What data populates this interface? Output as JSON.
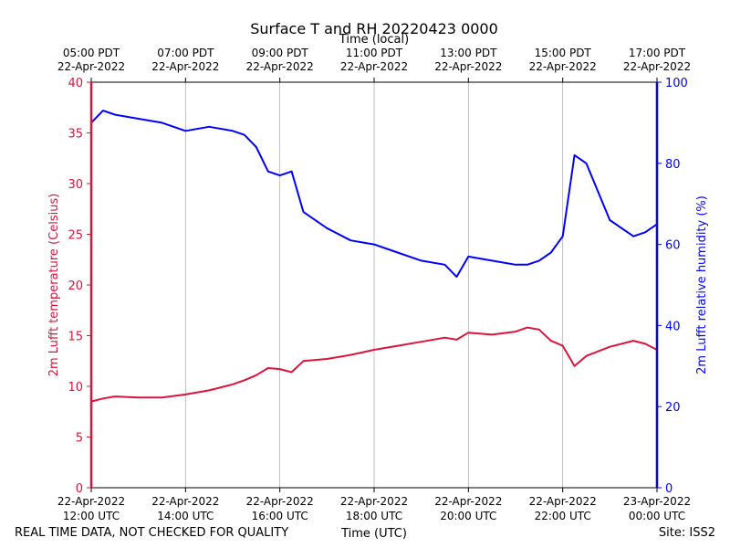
{
  "chart_data": {
    "type": "line",
    "title": "Surface T and RH 20220423 0000",
    "xlabel": "Time (UTC)",
    "x2label": "Time (local)",
    "ylabel": "2m Lufft temperature (Celsius)",
    "y2label": "2m Lufft relative humidity (%)",
    "xlim": [
      "2022-04-22 12:00",
      "2022-04-23 00:00"
    ],
    "ylim": [
      0,
      40
    ],
    "y2lim": [
      0,
      100
    ],
    "y_ticks": [
      0,
      5,
      10,
      15,
      20,
      25,
      30,
      35,
      40
    ],
    "y2_ticks": [
      0,
      20,
      40,
      60,
      80,
      100
    ],
    "grid": "vertical",
    "x_ticks_utc": [
      {
        "line1": "22-Apr-2022",
        "line2": "12:00 UTC"
      },
      {
        "line1": "22-Apr-2022",
        "line2": "14:00 UTC"
      },
      {
        "line1": "22-Apr-2022",
        "line2": "16:00 UTC"
      },
      {
        "line1": "22-Apr-2022",
        "line2": "18:00 UTC"
      },
      {
        "line1": "22-Apr-2022",
        "line2": "20:00 UTC"
      },
      {
        "line1": "22-Apr-2022",
        "line2": "22:00 UTC"
      },
      {
        "line1": "23-Apr-2022",
        "line2": "00:00 UTC"
      }
    ],
    "x_ticks_local": [
      {
        "line1": "05:00 PDT",
        "line2": "22-Apr-2022"
      },
      {
        "line1": "07:00 PDT",
        "line2": "22-Apr-2022"
      },
      {
        "line1": "09:00 PDT",
        "line2": "22-Apr-2022"
      },
      {
        "line1": "11:00 PDT",
        "line2": "22-Apr-2022"
      },
      {
        "line1": "13:00 PDT",
        "line2": "22-Apr-2022"
      },
      {
        "line1": "15:00 PDT",
        "line2": "22-Apr-2022"
      },
      {
        "line1": "17:00 PDT",
        "line2": "22-Apr-2022"
      }
    ],
    "x_hours_utc": [
      12.0,
      12.25,
      12.5,
      13.0,
      13.5,
      14.0,
      14.5,
      15.0,
      15.25,
      15.5,
      15.75,
      16.0,
      16.25,
      16.5,
      17.0,
      17.5,
      18.0,
      18.5,
      19.0,
      19.5,
      19.75,
      20.0,
      20.5,
      21.0,
      21.25,
      21.5,
      21.75,
      22.0,
      22.25,
      22.5,
      23.0,
      23.5,
      23.75,
      24.0
    ],
    "series": [
      {
        "name": "2m Lufft temperature",
        "color": "#dc143c",
        "axis": "left",
        "values": [
          8.5,
          8.8,
          9.0,
          8.9,
          8.9,
          9.2,
          9.6,
          10.2,
          10.6,
          11.1,
          11.8,
          11.7,
          11.4,
          12.5,
          12.7,
          13.1,
          13.6,
          14.0,
          14.4,
          14.8,
          14.6,
          15.3,
          15.1,
          15.4,
          15.8,
          15.6,
          14.5,
          14.0,
          12.0,
          13.0,
          13.9,
          14.5,
          14.2,
          13.6
        ]
      },
      {
        "name": "2m Lufft relative humidity",
        "color": "#0000ff",
        "axis": "right",
        "values": [
          90,
          93,
          92,
          91,
          90,
          88,
          89,
          88,
          87,
          84,
          78,
          77,
          78,
          68,
          64,
          61,
          60,
          58,
          56,
          55,
          52,
          57,
          56,
          55,
          55,
          56,
          58,
          62,
          82,
          80,
          66,
          62,
          63,
          65
        ]
      }
    ]
  },
  "footer": {
    "left": "REAL TIME DATA, NOT CHECKED FOR QUALITY",
    "right": "Site: ISS2"
  }
}
